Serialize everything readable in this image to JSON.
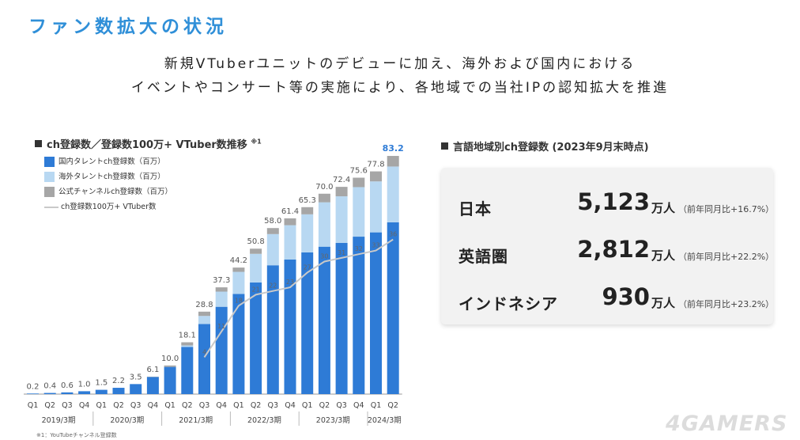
{
  "title": "ファン数拡大の状況",
  "subtitle_line1": "新規VTuberユニットのデビューに加え、海外および国内における",
  "subtitle_line2": "イベントやコンサート等の実施により、各地域での当社IPの認知拡大を推進",
  "chart_heading": "ch登録数／登録数100万+ VTuber数推移",
  "chart_heading_note": "※1",
  "right_heading": "言語地域別ch登録数 (2023年9月末時点)",
  "colors": {
    "domestic": "#2e7bd6",
    "overseas": "#b8d8f2",
    "official": "#a6a6a6",
    "line": "#c9c9c9",
    "title_blue": "#2f8fd8"
  },
  "legend": [
    {
      "label": "国内タレントch登録数（百万）",
      "color": "#2e7bd6",
      "kind": "bar"
    },
    {
      "label": "海外タレントch登録数（百万）",
      "color": "#b8d8f2",
      "kind": "bar"
    },
    {
      "label": "公式チャンネルch登録数（百万）",
      "color": "#a6a6a6",
      "kind": "bar"
    },
    {
      "label": "ch登録数100万+ VTuber数",
      "color": "#c9c9c9",
      "kind": "line"
    }
  ],
  "chart_data": {
    "type": "bar",
    "stacked": true,
    "categories": [
      "Q1",
      "Q2",
      "Q3",
      "Q4",
      "Q1",
      "Q2",
      "Q3",
      "Q4",
      "Q1",
      "Q2",
      "Q3",
      "Q4",
      "Q1",
      "Q2",
      "Q3",
      "Q4",
      "Q1",
      "Q2",
      "Q3",
      "Q4",
      "Q1",
      "Q2"
    ],
    "fiscal_years": [
      {
        "label": "2019/3期",
        "quarters": 4
      },
      {
        "label": "2020/3期",
        "quarters": 4
      },
      {
        "label": "2021/3期",
        "quarters": 4
      },
      {
        "label": "2022/3期",
        "quarters": 4
      },
      {
        "label": "2023/3期",
        "quarters": 4
      },
      {
        "label": "2024/3期",
        "quarters": 2
      }
    ],
    "totals": [
      0.2,
      0.4,
      0.6,
      1.0,
      1.5,
      2.2,
      3.5,
      6.1,
      10.0,
      18.1,
      28.8,
      37.3,
      44.2,
      50.8,
      58.0,
      61.4,
      65.3,
      70.0,
      72.4,
      75.6,
      77.8,
      83.2
    ],
    "series": [
      {
        "name": "国内タレントch登録数（百万）",
        "values": [
          0.2,
          0.4,
          0.6,
          1.0,
          1.5,
          2.2,
          3.5,
          6.0,
          9.5,
          16.5,
          24.5,
          30.5,
          35.0,
          39.0,
          45.0,
          47.0,
          49.5,
          51.5,
          52.8,
          55.0,
          56.5,
          60.0
        ]
      },
      {
        "name": "海外タレントch登録数（百万）",
        "values": [
          0,
          0,
          0,
          0,
          0,
          0,
          0,
          0,
          0,
          0.5,
          2.8,
          5.3,
          7.7,
          10.0,
          10.9,
          12.0,
          13.3,
          15.5,
          16.3,
          17.3,
          17.8,
          19.5
        ]
      },
      {
        "name": "公式チャンネルch登録数（百万）",
        "values": [
          0,
          0,
          0,
          0,
          0,
          0,
          0,
          0.1,
          0.5,
          1.1,
          1.5,
          1.5,
          1.5,
          1.8,
          2.1,
          2.4,
          2.5,
          3.0,
          3.3,
          3.3,
          3.5,
          3.7
        ]
      }
    ],
    "line": {
      "name": "ch登録数100万+ VTuber数",
      "start_index": 10,
      "values": [
        4,
        11,
        18,
        21,
        22,
        23,
        27,
        30,
        31,
        32,
        33,
        36
      ]
    },
    "last_total_highlight": "83.2",
    "ylim": [
      0,
      90
    ]
  },
  "stats": [
    {
      "name": "日本",
      "value": "5,123",
      "unit": "万人",
      "change": "（前年同月比+16.7%）"
    },
    {
      "name": "英語圏",
      "value": "2,812",
      "unit": "万人",
      "change": "（前年同月比+22.2%）"
    },
    {
      "name": "インドネシア",
      "value": "930",
      "unit": "万人",
      "change": "（前年同月比+23.2%）"
    }
  ],
  "footnote": "※1：YouTubeチャンネル登録数",
  "watermark": "4GAMERS"
}
